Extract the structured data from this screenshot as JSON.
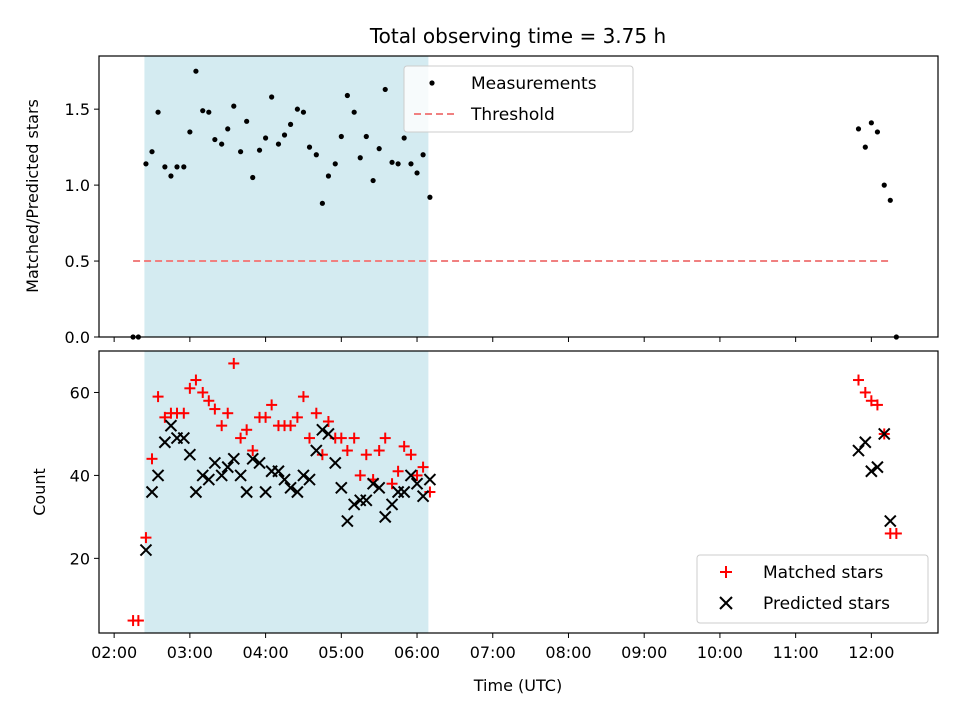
{
  "chart_data": [
    {
      "type": "scatter",
      "title": "Total observing time = 3.75 h",
      "xlabel": "",
      "ylabel": "Matched/Predicted stars",
      "x_unit": "hours UTC",
      "xlim": [
        1.8,
        12.88
      ],
      "ylim": [
        0,
        1.85
      ],
      "yticks": [
        0.0,
        0.5,
        1.0,
        1.5
      ],
      "ytick_labels": [
        "0.0",
        "0.5",
        "1.0",
        "1.5"
      ],
      "shaded_span": [
        2.4,
        6.15
      ],
      "shaded_color": "#d4ebf1",
      "legend": {
        "placement": "upper-center",
        "entries": [
          "Measurements",
          "Threshold"
        ]
      },
      "series": [
        {
          "name": "Measurements",
          "marker": "dot",
          "color": "#000000",
          "x": [
            2.25,
            2.32,
            2.42,
            2.5,
            2.58,
            2.67,
            2.75,
            2.83,
            2.92,
            3.0,
            3.08,
            3.17,
            3.25,
            3.33,
            3.42,
            3.5,
            3.58,
            3.67,
            3.75,
            3.83,
            3.92,
            4.0,
            4.08,
            4.17,
            4.25,
            4.33,
            4.42,
            4.5,
            4.58,
            4.67,
            4.75,
            4.83,
            4.92,
            5.0,
            5.08,
            5.17,
            5.25,
            5.33,
            5.42,
            5.5,
            5.58,
            5.67,
            5.75,
            5.83,
            5.92,
            6.0,
            6.08,
            6.17,
            11.83,
            11.92,
            12.0,
            12.08,
            12.17,
            12.25,
            12.33
          ],
          "y": [
            0.0,
            0.0,
            1.14,
            1.22,
            1.48,
            1.12,
            1.06,
            1.12,
            1.12,
            1.35,
            1.75,
            1.49,
            1.48,
            1.3,
            1.27,
            1.37,
            1.52,
            1.22,
            1.42,
            1.05,
            1.23,
            1.31,
            1.58,
            1.27,
            1.33,
            1.4,
            1.5,
            1.48,
            1.25,
            1.2,
            0.88,
            1.06,
            1.14,
            1.32,
            1.59,
            1.48,
            1.18,
            1.32,
            1.03,
            1.24,
            1.63,
            1.15,
            1.14,
            1.31,
            1.14,
            1.08,
            1.2,
            0.92,
            1.37,
            1.25,
            1.41,
            1.35,
            1.0,
            0.9,
            0.0
          ]
        },
        {
          "name": "Threshold",
          "style": "dashed",
          "color": "#f08080",
          "x": [
            2.25,
            12.25
          ],
          "y": [
            0.5,
            0.5
          ]
        }
      ]
    },
    {
      "type": "scatter",
      "title": "",
      "xlabel": "Time (UTC)",
      "ylabel": "Count",
      "x_unit": "hours UTC",
      "xlim": [
        1.8,
        12.88
      ],
      "ylim": [
        2,
        70
      ],
      "yticks": [
        20,
        40,
        60
      ],
      "ytick_labels": [
        "20",
        "40",
        "60"
      ],
      "xticks": [
        2,
        3,
        4,
        5,
        6,
        7,
        8,
        9,
        10,
        11,
        12
      ],
      "xtick_labels": [
        "02:00",
        "03:00",
        "04:00",
        "05:00",
        "06:00",
        "07:00",
        "08:00",
        "09:00",
        "10:00",
        "11:00",
        "12:00"
      ],
      "shaded_span": [
        2.4,
        6.15
      ],
      "shaded_color": "#d4ebf1",
      "legend": {
        "placement": "lower-right",
        "entries": [
          "Matched stars",
          "Predicted stars"
        ]
      },
      "series": [
        {
          "name": "Matched stars",
          "marker": "plus",
          "color": "#ff0000",
          "x": [
            2.25,
            2.32,
            2.42,
            2.5,
            2.58,
            2.67,
            2.75,
            2.83,
            2.92,
            3.0,
            3.08,
            3.17,
            3.25,
            3.33,
            3.42,
            3.5,
            3.58,
            3.67,
            3.75,
            3.83,
            3.92,
            4.0,
            4.08,
            4.17,
            4.25,
            4.33,
            4.42,
            4.5,
            4.58,
            4.67,
            4.75,
            4.83,
            4.92,
            5.0,
            5.08,
            5.17,
            5.25,
            5.33,
            5.42,
            5.5,
            5.58,
            5.67,
            5.75,
            5.83,
            5.92,
            6.0,
            6.08,
            6.17,
            11.83,
            11.92,
            12.0,
            12.08,
            12.17,
            12.25,
            12.33
          ],
          "y": [
            5,
            5,
            25,
            44,
            59,
            54,
            55,
            55,
            55,
            61,
            63,
            60,
            58,
            56,
            52,
            55,
            67,
            49,
            51,
            46,
            54,
            54,
            57,
            52,
            52,
            52,
            54,
            59,
            49,
            55,
            45,
            53,
            49,
            49,
            46,
            49,
            40,
            45,
            39,
            46,
            49,
            38,
            41,
            47,
            45,
            40,
            42,
            36,
            63,
            60,
            58,
            57,
            50,
            26,
            26
          ]
        },
        {
          "name": "Predicted stars",
          "marker": "x",
          "color": "#000000",
          "x": [
            2.42,
            2.5,
            2.58,
            2.67,
            2.75,
            2.83,
            2.92,
            3.0,
            3.08,
            3.17,
            3.25,
            3.33,
            3.42,
            3.5,
            3.58,
            3.67,
            3.75,
            3.83,
            3.92,
            4.0,
            4.08,
            4.17,
            4.25,
            4.33,
            4.42,
            4.5,
            4.58,
            4.67,
            4.75,
            4.83,
            4.92,
            5.0,
            5.08,
            5.17,
            5.25,
            5.33,
            5.42,
            5.5,
            5.58,
            5.67,
            5.75,
            5.83,
            5.92,
            6.0,
            6.08,
            6.17,
            11.83,
            11.92,
            12.0,
            12.08,
            12.17,
            12.25
          ],
          "y": [
            22,
            36,
            40,
            48,
            52,
            49,
            49,
            45,
            36,
            40,
            39,
            43,
            40,
            42,
            44,
            40,
            36,
            44,
            43,
            36,
            41,
            41,
            39,
            37,
            36,
            40,
            39,
            46,
            51,
            50,
            43,
            37,
            29,
            33,
            34,
            34,
            38,
            37,
            30,
            33,
            36,
            36,
            40,
            38,
            35,
            39,
            46,
            48,
            41,
            42,
            50,
            29
          ]
        }
      ]
    }
  ]
}
